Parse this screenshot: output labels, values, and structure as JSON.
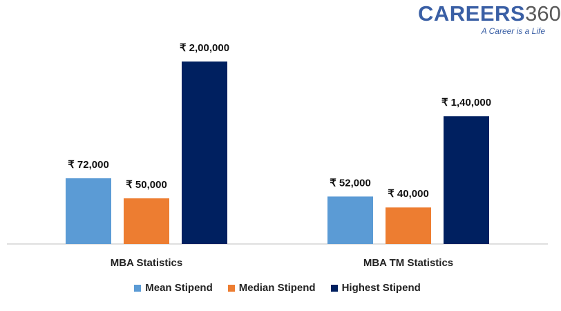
{
  "logo": {
    "brand": "CAREERS",
    "brand_number": "360",
    "tagline": "A Career is a Life"
  },
  "chart_data": {
    "type": "bar",
    "title": "",
    "xlabel": "",
    "ylabel": "",
    "categories": [
      "MBA Statistics",
      "MBA TM Statistics"
    ],
    "series": [
      {
        "name": "Mean Stipend",
        "color": "#5b9bd5",
        "values": [
          72000,
          52000
        ],
        "labels": [
          "₹ 72,000",
          "₹ 52,000"
        ]
      },
      {
        "name": "Median Stipend",
        "color": "#ed7d31",
        "values": [
          50000,
          40000
        ],
        "labels": [
          "₹ 50,000",
          "₹ 40,000"
        ]
      },
      {
        "name": "Highest Stipend",
        "color": "#002060",
        "values": [
          200000,
          140000
        ],
        "labels": [
          "₹ 2,00,000",
          "₹ 1,40,000"
        ]
      }
    ],
    "ylim": [
      0,
      200000
    ],
    "grid": false,
    "legend": "bottom"
  }
}
